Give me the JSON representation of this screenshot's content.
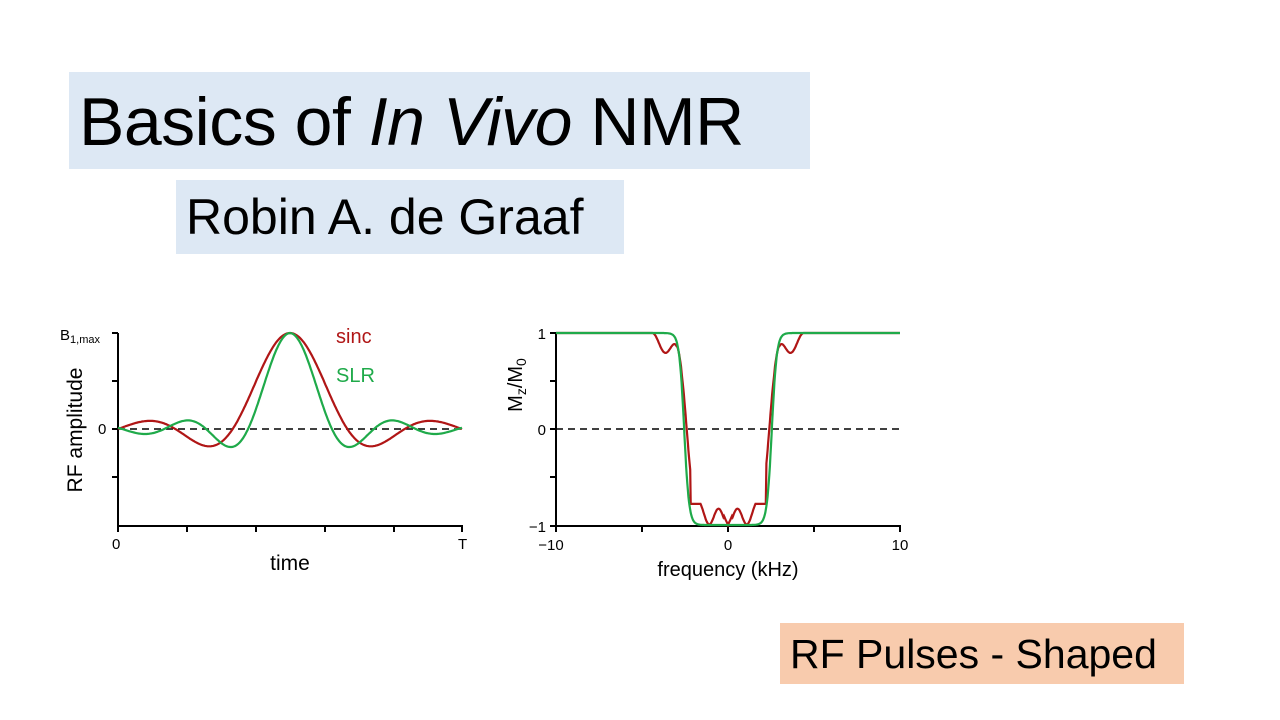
{
  "slide": {
    "title_parts": [
      "Basics of ",
      "In Vivo",
      " NMR"
    ],
    "author": "Robin A. de Graaf",
    "topic": "RF Pulses - Shaped",
    "colors": {
      "title_bg": "#dde8f4",
      "topic_bg": "#f8cbad",
      "sinc": "#b01616",
      "slr": "#1faa4a"
    }
  },
  "chart_data": [
    {
      "type": "line",
      "title": "",
      "xlabel": "time",
      "ylabel": "RF amplitude",
      "x_ticks": [
        "0",
        "T"
      ],
      "y_ticks": [
        "0",
        "B1,max"
      ],
      "xlim": [
        0,
        1
      ],
      "ylim": [
        -1,
        1
      ],
      "legend": [
        "sinc",
        "SLR"
      ],
      "legend_position": "upper right (inline)",
      "reference_line": {
        "y": 0,
        "style": "dashed"
      },
      "series": [
        {
          "name": "sinc",
          "color": "#b01616",
          "x": [
            0,
            0.1,
            0.27,
            0.5,
            0.73,
            0.9,
            1
          ],
          "values": [
            0,
            0.13,
            -0.22,
            1.0,
            -0.22,
            0.13,
            0
          ]
        },
        {
          "name": "SLR",
          "color": "#1faa4a",
          "x": [
            0,
            0.12,
            0.33,
            0.5,
            0.67,
            0.88,
            1
          ],
          "values": [
            0,
            0.08,
            -0.18,
            1.0,
            -0.18,
            0.08,
            0
          ]
        }
      ]
    },
    {
      "type": "line",
      "title": "",
      "xlabel": "frequency (kHz)",
      "ylabel": "Mz/M0",
      "x_ticks": [
        "-10",
        "0",
        "10"
      ],
      "y_ticks": [
        "-1",
        "0",
        "1"
      ],
      "xlim": [
        -10,
        10
      ],
      "ylim": [
        -1,
        1
      ],
      "reference_line": {
        "y": 0,
        "style": "dashed"
      },
      "series": [
        {
          "name": "sinc",
          "color": "#b01616",
          "x": [
            -10,
            -4,
            -3.5,
            -3,
            -2.9,
            -2.4,
            -2,
            -1.5,
            -1,
            0,
            1,
            1.5,
            2,
            2.4,
            2.9,
            3,
            3.5,
            4,
            10
          ],
          "values": [
            1,
            1,
            0.8,
            0.98,
            1.0,
            0,
            -0.8,
            -0.85,
            -0.78,
            -1.0,
            -0.78,
            -0.85,
            -0.8,
            0,
            1.0,
            0.98,
            0.8,
            1,
            1
          ]
        },
        {
          "name": "SLR",
          "color": "#1faa4a",
          "x": [
            -10,
            -3,
            -2.5,
            -2,
            2,
            2.5,
            3,
            10
          ],
          "values": [
            1,
            1,
            0,
            -1,
            -1,
            0,
            1,
            1
          ]
        }
      ]
    }
  ]
}
